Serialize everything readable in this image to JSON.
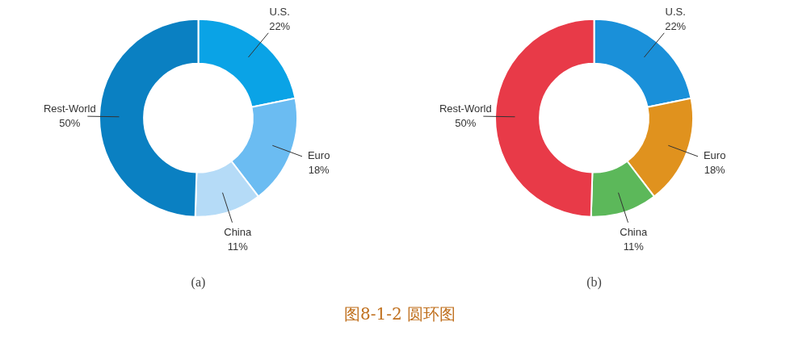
{
  "chart_data": [
    {
      "type": "donut",
      "xlabel": "(a)",
      "categories": [
        "U.S.",
        "Euro",
        "China",
        "Rest-World"
      ],
      "values": [
        22,
        18,
        11,
        50
      ],
      "colors": [
        "#0aa3e6",
        "#6bbcf2",
        "#b5dbf7",
        "#0a80c2"
      ],
      "value_labels": [
        "22%",
        "18%",
        "11%",
        "50%"
      ],
      "legend": false
    },
    {
      "type": "donut",
      "xlabel": "(b)",
      "categories": [
        "U.S.",
        "Euro",
        "China",
        "Rest-World"
      ],
      "values": [
        22,
        18,
        11,
        50
      ],
      "colors": [
        "#1a90d9",
        "#e0921e",
        "#5cb85a",
        "#e83a48"
      ],
      "value_labels": [
        "22%",
        "18%",
        "11%",
        "50%"
      ],
      "legend": false,
      "annotations": [
        "图8-1-2 圆环图"
      ]
    }
  ]
}
